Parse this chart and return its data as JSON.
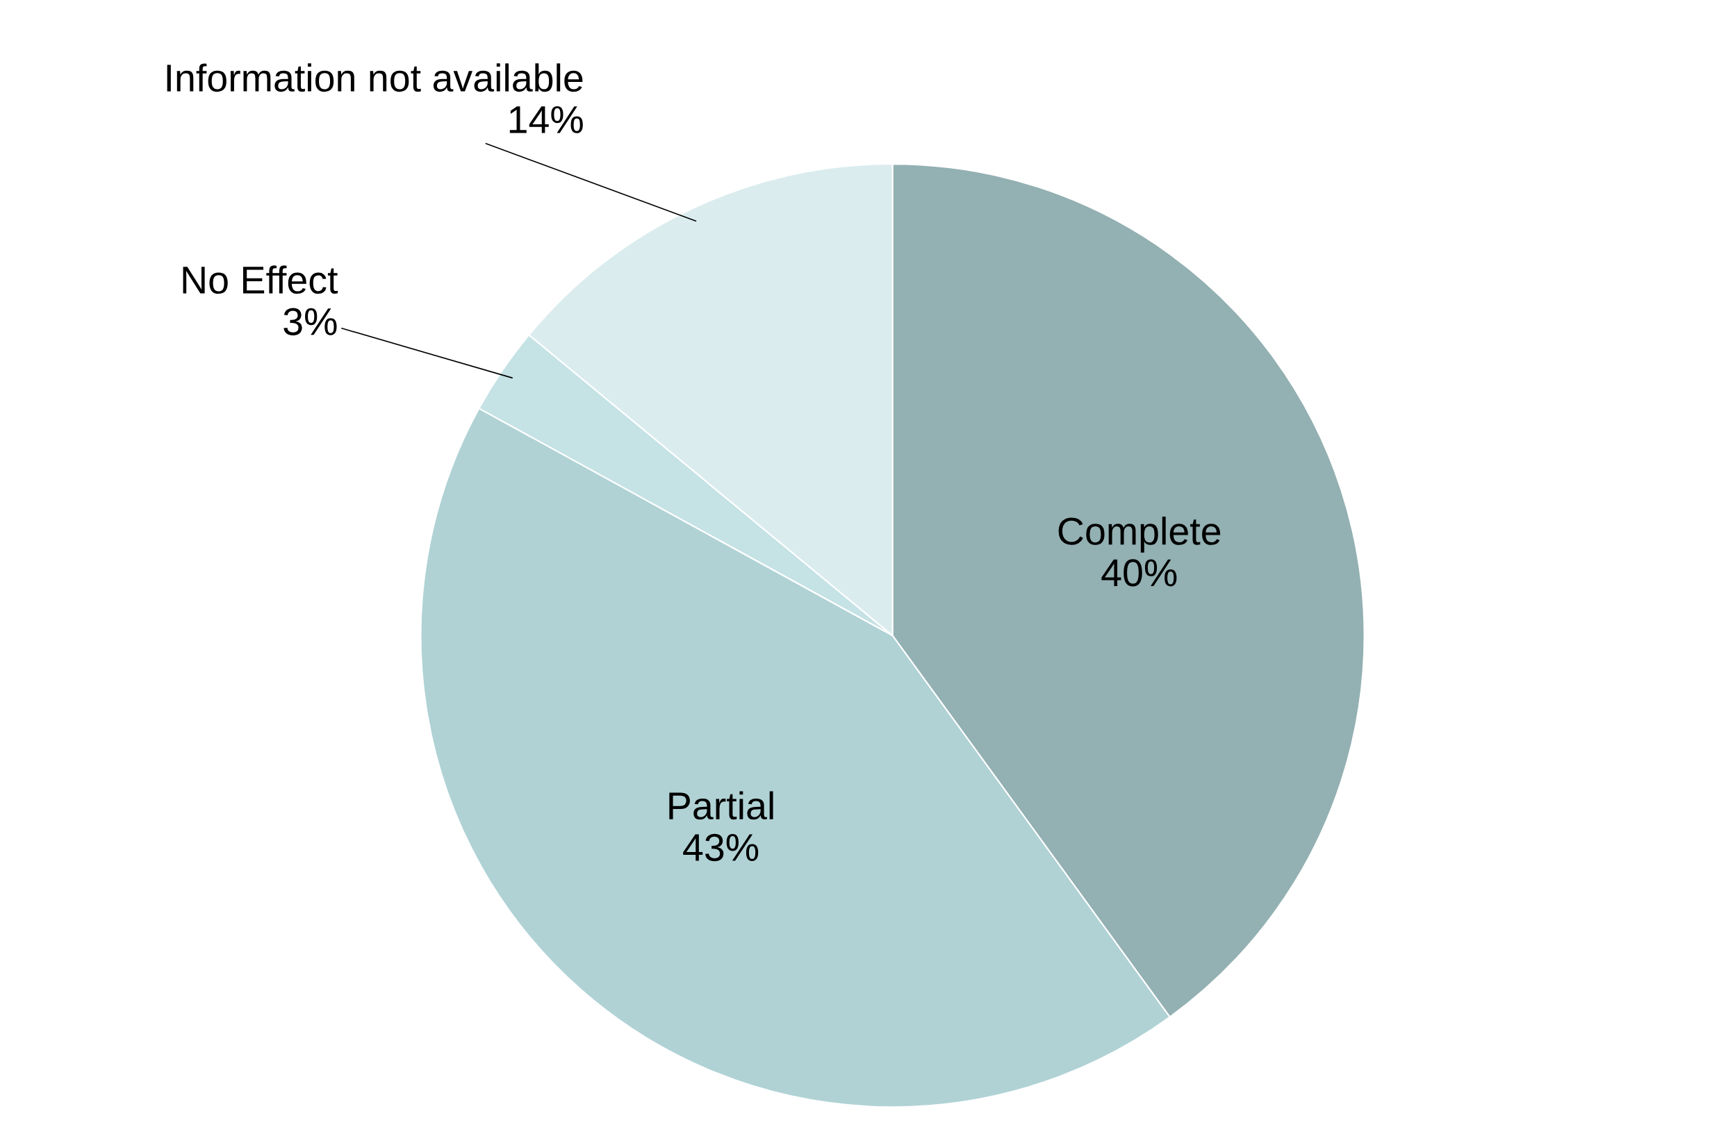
{
  "chart_data": {
    "type": "pie",
    "categories": [
      "Complete",
      "Partial",
      "No Effect",
      "Information not available"
    ],
    "values": [
      40,
      43,
      3,
      14
    ],
    "value_labels": [
      "40%",
      "43%",
      "3%",
      "14%"
    ],
    "colors": [
      "#93b0b2",
      "#b0d2d5",
      "#c5e2e5",
      "#daecee"
    ],
    "legend": false
  }
}
